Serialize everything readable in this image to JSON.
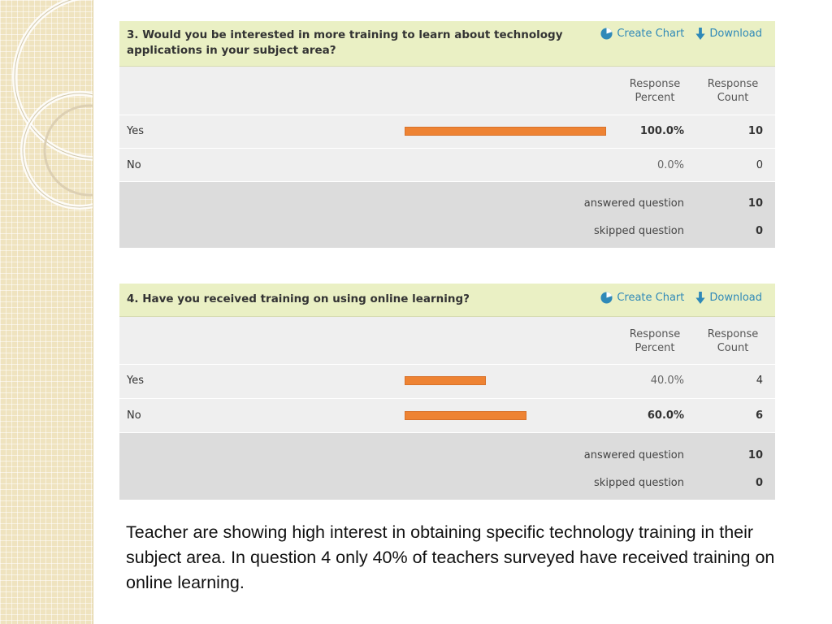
{
  "panels": [
    {
      "question": "3. Would you be interested in more training to learn about technology applications in your subject area?",
      "create_chart_label": "Create Chart",
      "download_label": "Download",
      "col_percent": "Response\nPercent",
      "col_count": "Response\nCount",
      "rows": [
        {
          "label": "Yes",
          "percent": 100.0,
          "percent_label": "100.0%",
          "count": "10"
        },
        {
          "label": "No",
          "percent": 0.0,
          "percent_label": "0.0%",
          "count": "0"
        }
      ],
      "answered_label": "answered question",
      "answered_value": "10",
      "skipped_label": "skipped question",
      "skipped_value": "0"
    },
    {
      "question": "4. Have you received training on using online learning?",
      "create_chart_label": "Create Chart",
      "download_label": "Download",
      "col_percent": "Response\nPercent",
      "col_count": "Response\nCount",
      "rows": [
        {
          "label": "Yes",
          "percent": 40.0,
          "percent_label": "40.0%",
          "count": "4"
        },
        {
          "label": "No",
          "percent": 60.0,
          "percent_label": "60.0%",
          "count": "6"
        }
      ],
      "answered_label": "answered question",
      "answered_value": "10",
      "skipped_label": "skipped question",
      "skipped_value": "0"
    }
  ],
  "summary_text": "Teacher are showing high interest in obtaining specific technology training in their subject area.  In question 4 only 40% of teachers surveyed have received training on online learning.",
  "colors": {
    "bar": "#ee8333",
    "header_bg": "#eaf0c4",
    "link": "#2f89b8",
    "summary_bg": "#dcdcdc",
    "side_strip": "#efe3bf"
  },
  "icons": {
    "create_chart": "pie-chart-icon",
    "download": "down-arrow-icon"
  }
}
